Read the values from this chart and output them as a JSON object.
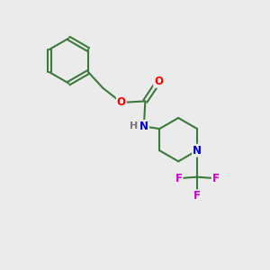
{
  "background_color": "#ebebeb",
  "bond_color": "#3a7a3a",
  "atom_colors": {
    "O": "#ff0000",
    "N": "#0000cc",
    "F": "#cc00cc",
    "H": "#777777",
    "C": "#3a7a3a"
  },
  "figsize": [
    3.0,
    3.0
  ],
  "dpi": 100
}
